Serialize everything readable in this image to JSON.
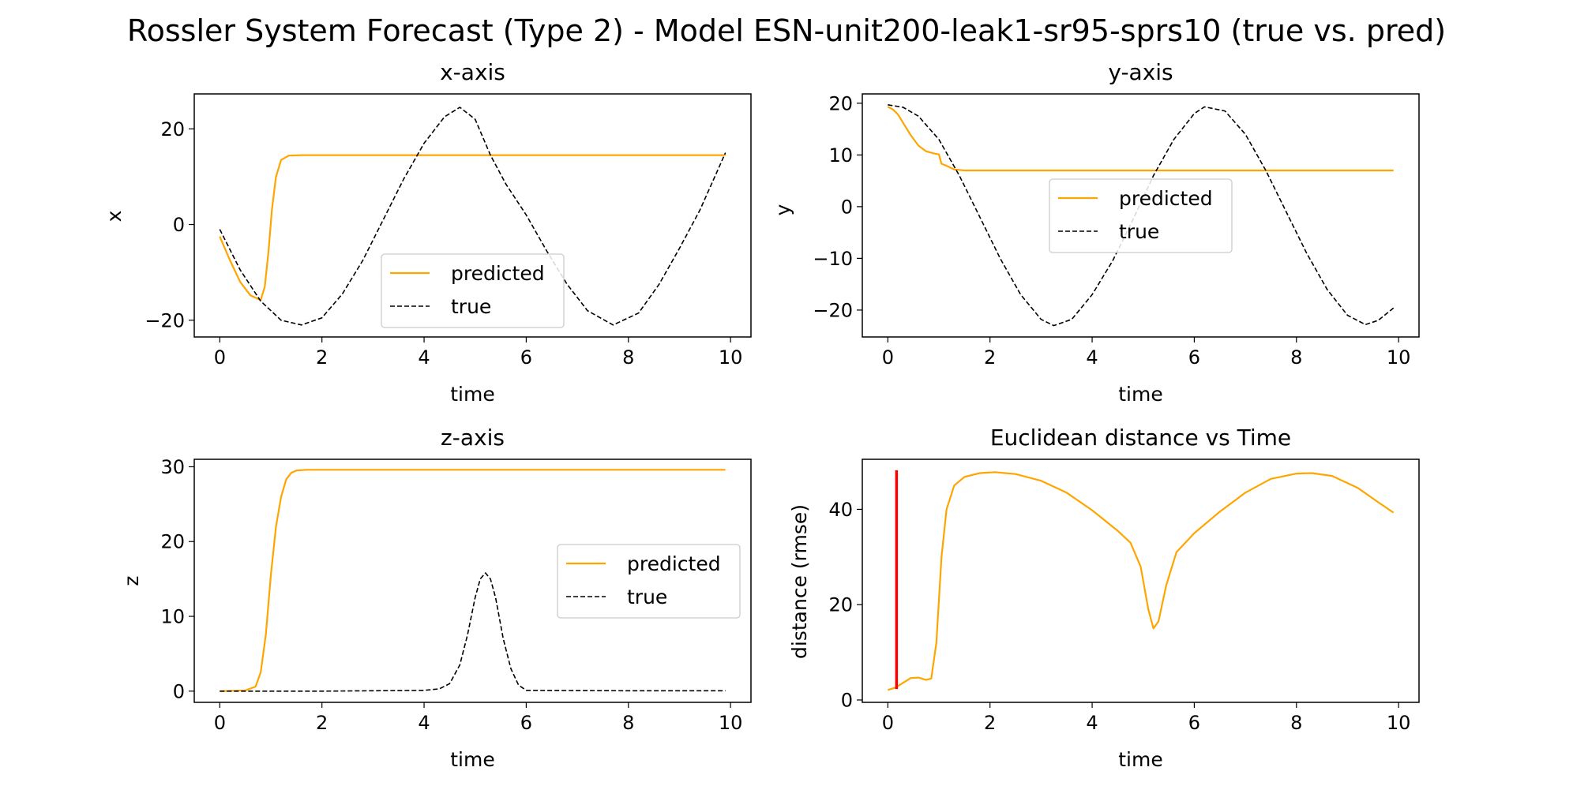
{
  "figure": {
    "title": "Rossler System Forecast (Type 2) - Model ESN-unit200-leak1-sr95-sprs10 (true vs. pred)"
  },
  "colors": {
    "predicted": "#FFA500",
    "true": "#000000",
    "marker": "#FF0000"
  },
  "chart_data": [
    {
      "type": "line",
      "title": "x-axis",
      "xlabel": "time",
      "ylabel": "x",
      "xlim": [
        -0.5,
        10.4
      ],
      "ylim": [
        -23.5,
        27.3
      ],
      "xticks": [
        0,
        2,
        4,
        6,
        8,
        10
      ],
      "xtick_labels": [
        "0",
        "2",
        "4",
        "6",
        "8",
        "10"
      ],
      "yticks": [
        -20,
        0,
        20
      ],
      "ytick_labels": [
        "−20",
        "0",
        "20"
      ],
      "legend": {
        "position": "lower-center",
        "entries": [
          "predicted",
          "true"
        ]
      },
      "series": [
        {
          "name": "predicted",
          "style": "solid",
          "x": [
            0,
            0.2,
            0.4,
            0.6,
            0.8,
            0.88,
            0.95,
            1.02,
            1.1,
            1.2,
            1.35,
            1.6,
            2,
            4,
            6,
            8,
            9.9
          ],
          "y": [
            -2.5,
            -7.5,
            -12,
            -14.8,
            -15.8,
            -13,
            -6,
            3,
            10,
            13.5,
            14.4,
            14.5,
            14.5,
            14.5,
            14.5,
            14.5,
            14.5
          ]
        },
        {
          "name": "true",
          "style": "dashed",
          "x": [
            0,
            0.4,
            0.8,
            1.2,
            1.6,
            2.0,
            2.4,
            2.8,
            3.2,
            3.6,
            4.0,
            4.4,
            4.7,
            5.0,
            5.3,
            5.6,
            6.0,
            6.4,
            6.8,
            7.2,
            7.7,
            8.2,
            8.6,
            9.0,
            9.4,
            9.9
          ],
          "y": [
            -1,
            -9.5,
            -16,
            -20,
            -21,
            -19.5,
            -14.5,
            -7.5,
            1,
            9.5,
            17,
            22.5,
            24.5,
            22,
            14.5,
            8.5,
            2,
            -5.5,
            -12.5,
            -18,
            -21,
            -18.5,
            -12.5,
            -5,
            3,
            15
          ]
        }
      ]
    },
    {
      "type": "line",
      "title": "y-axis",
      "xlabel": "time",
      "ylabel": "y",
      "xlim": [
        -0.5,
        10.4
      ],
      "ylim": [
        -25.2,
        21.8
      ],
      "xticks": [
        0,
        2,
        4,
        6,
        8,
        10
      ],
      "xtick_labels": [
        "0",
        "2",
        "4",
        "6",
        "8",
        "10"
      ],
      "yticks": [
        -20,
        -10,
        0,
        10,
        20
      ],
      "ytick_labels": [
        "−20",
        "−10",
        "0",
        "10",
        "20"
      ],
      "legend": {
        "position": "center",
        "entries": [
          "predicted",
          "true"
        ]
      },
      "series": [
        {
          "name": "predicted",
          "style": "solid",
          "x": [
            0,
            0.1,
            0.2,
            0.3,
            0.45,
            0.6,
            0.75,
            0.9,
            1.0,
            1.05,
            1.15,
            1.3,
            1.5,
            2,
            4,
            6,
            8,
            9.9
          ],
          "y": [
            19.3,
            18.8,
            17.8,
            16.2,
            13.8,
            11.8,
            10.7,
            10.3,
            10.1,
            8.3,
            7.9,
            7.2,
            7.0,
            7.0,
            7.0,
            7.0,
            7.0,
            7.0
          ]
        },
        {
          "name": "true",
          "style": "dashed",
          "x": [
            0,
            0.3,
            0.6,
            1.0,
            1.4,
            1.8,
            2.2,
            2.6,
            3.0,
            3.25,
            3.6,
            4.0,
            4.4,
            4.8,
            5.2,
            5.6,
            6.0,
            6.2,
            6.6,
            7.0,
            7.4,
            7.8,
            8.2,
            8.6,
            9.0,
            9.35,
            9.6,
            9.9
          ],
          "y": [
            19.7,
            19.2,
            17.5,
            13,
            6,
            -2,
            -10,
            -17,
            -21.8,
            -23,
            -21.8,
            -17,
            -10.5,
            -2.5,
            6,
            13,
            18,
            19.3,
            18.5,
            14,
            7,
            -1,
            -9,
            -16,
            -21,
            -22.8,
            -22,
            -19.6
          ]
        }
      ]
    },
    {
      "type": "line",
      "title": "z-axis",
      "xlabel": "time",
      "ylabel": "z",
      "xlim": [
        -0.5,
        10.4
      ],
      "ylim": [
        -1.5,
        31
      ],
      "xticks": [
        0,
        2,
        4,
        6,
        8,
        10
      ],
      "xtick_labels": [
        "0",
        "2",
        "4",
        "6",
        "8",
        "10"
      ],
      "yticks": [
        0,
        10,
        20,
        30
      ],
      "ytick_labels": [
        "0",
        "10",
        "20",
        "30"
      ],
      "legend": {
        "position": "center-right",
        "entries": [
          "predicted",
          "true"
        ]
      },
      "series": [
        {
          "name": "predicted",
          "style": "solid",
          "x": [
            0,
            0.5,
            0.7,
            0.8,
            0.9,
            1.0,
            1.1,
            1.2,
            1.3,
            1.4,
            1.5,
            1.7,
            2,
            4,
            6,
            8,
            9.9
          ],
          "y": [
            0,
            0.1,
            0.6,
            2.5,
            7.5,
            15.5,
            22,
            26,
            28.3,
            29.2,
            29.5,
            29.6,
            29.6,
            29.6,
            29.6,
            29.6,
            29.6
          ]
        },
        {
          "name": "true",
          "style": "dashed",
          "x": [
            0,
            2,
            4.0,
            4.3,
            4.5,
            4.7,
            4.85,
            5.0,
            5.1,
            5.2,
            5.3,
            5.4,
            5.55,
            5.7,
            5.85,
            6.0,
            8,
            9.9
          ],
          "y": [
            0,
            0,
            0.1,
            0.3,
            1,
            3.5,
            7.5,
            12.5,
            15,
            15.8,
            15,
            12.5,
            7,
            3,
            0.8,
            0.1,
            0.05,
            0.05
          ]
        }
      ]
    },
    {
      "type": "line",
      "title": "Euclidean distance vs Time",
      "xlabel": "time",
      "ylabel": "distance (rmse)",
      "xlim": [
        -0.5,
        10.4
      ],
      "ylim": [
        -0.5,
        50.5
      ],
      "xticks": [
        0,
        2,
        4,
        6,
        8,
        10
      ],
      "xtick_labels": [
        "0",
        "2",
        "4",
        "6",
        "8",
        "10"
      ],
      "yticks": [
        0,
        20,
        40
      ],
      "ytick_labels": [
        "0",
        "20",
        "40"
      ],
      "vertical_marker": {
        "x": 0.17,
        "ymin": 2.3,
        "ymax": 48.2
      },
      "series": [
        {
          "name": "distance",
          "style": "solid",
          "x": [
            0,
            0.15,
            0.3,
            0.45,
            0.6,
            0.75,
            0.85,
            0.95,
            1.05,
            1.15,
            1.3,
            1.5,
            1.8,
            2.1,
            2.5,
            3.0,
            3.5,
            4.0,
            4.5,
            4.75,
            4.95,
            5.1,
            5.2,
            5.3,
            5.45,
            5.65,
            6.0,
            6.5,
            7.0,
            7.5,
            8.0,
            8.3,
            8.7,
            9.2,
            9.6,
            9.9
          ],
          "y": [
            2.1,
            2.6,
            3.6,
            4.6,
            4.7,
            4.2,
            4.5,
            12,
            30,
            40,
            45,
            46.8,
            47.6,
            47.8,
            47.4,
            46,
            43.5,
            39.8,
            35.5,
            33,
            28,
            19,
            15,
            16.5,
            24,
            31,
            35,
            39.5,
            43.5,
            46.4,
            47.5,
            47.6,
            47,
            44.5,
            41.5,
            39.3
          ]
        }
      ]
    }
  ]
}
